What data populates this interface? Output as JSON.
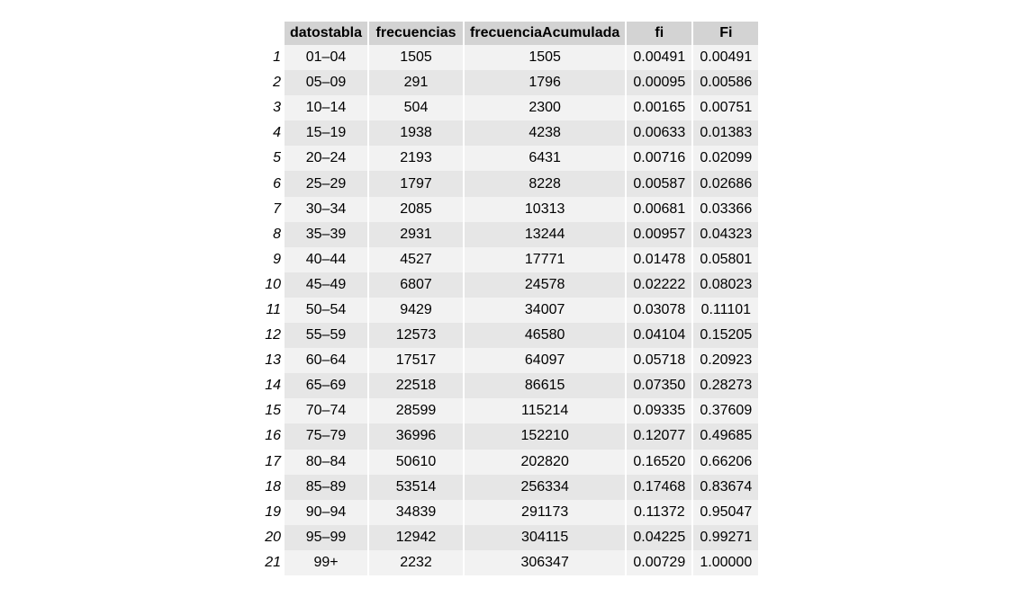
{
  "table": {
    "columns": [
      "datostabla",
      "frecuencias",
      "frecuenciaAcumulada",
      "fi",
      "Fi"
    ],
    "rows": [
      {
        "index": "1",
        "datostabla": "01–04",
        "frecuencias": "1505",
        "frecuenciaAcumulada": "1505",
        "fi": "0.00491",
        "Fi": "0.00491"
      },
      {
        "index": "2",
        "datostabla": "05–09",
        "frecuencias": "291",
        "frecuenciaAcumulada": "1796",
        "fi": "0.00095",
        "Fi": "0.00586"
      },
      {
        "index": "3",
        "datostabla": "10–14",
        "frecuencias": "504",
        "frecuenciaAcumulada": "2300",
        "fi": "0.00165",
        "Fi": "0.00751"
      },
      {
        "index": "4",
        "datostabla": "15–19",
        "frecuencias": "1938",
        "frecuenciaAcumulada": "4238",
        "fi": "0.00633",
        "Fi": "0.01383"
      },
      {
        "index": "5",
        "datostabla": "20–24",
        "frecuencias": "2193",
        "frecuenciaAcumulada": "6431",
        "fi": "0.00716",
        "Fi": "0.02099"
      },
      {
        "index": "6",
        "datostabla": "25–29",
        "frecuencias": "1797",
        "frecuenciaAcumulada": "8228",
        "fi": "0.00587",
        "Fi": "0.02686"
      },
      {
        "index": "7",
        "datostabla": "30–34",
        "frecuencias": "2085",
        "frecuenciaAcumulada": "10313",
        "fi": "0.00681",
        "Fi": "0.03366"
      },
      {
        "index": "8",
        "datostabla": "35–39",
        "frecuencias": "2931",
        "frecuenciaAcumulada": "13244",
        "fi": "0.00957",
        "Fi": "0.04323"
      },
      {
        "index": "9",
        "datostabla": "40–44",
        "frecuencias": "4527",
        "frecuenciaAcumulada": "17771",
        "fi": "0.01478",
        "Fi": "0.05801"
      },
      {
        "index": "10",
        "datostabla": "45–49",
        "frecuencias": "6807",
        "frecuenciaAcumulada": "24578",
        "fi": "0.02222",
        "Fi": "0.08023"
      },
      {
        "index": "11",
        "datostabla": "50–54",
        "frecuencias": "9429",
        "frecuenciaAcumulada": "34007",
        "fi": "0.03078",
        "Fi": "0.11101"
      },
      {
        "index": "12",
        "datostabla": "55–59",
        "frecuencias": "12573",
        "frecuenciaAcumulada": "46580",
        "fi": "0.04104",
        "Fi": "0.15205"
      },
      {
        "index": "13",
        "datostabla": "60–64",
        "frecuencias": "17517",
        "frecuenciaAcumulada": "64097",
        "fi": "0.05718",
        "Fi": "0.20923"
      },
      {
        "index": "14",
        "datostabla": "65–69",
        "frecuencias": "22518",
        "frecuenciaAcumulada": "86615",
        "fi": "0.07350",
        "Fi": "0.28273"
      },
      {
        "index": "15",
        "datostabla": "70–74",
        "frecuencias": "28599",
        "frecuenciaAcumulada": "115214",
        "fi": "0.09335",
        "Fi": "0.37609"
      },
      {
        "index": "16",
        "datostabla": "75–79",
        "frecuencias": "36996",
        "frecuenciaAcumulada": "152210",
        "fi": "0.12077",
        "Fi": "0.49685"
      },
      {
        "index": "17",
        "datostabla": "80–84",
        "frecuencias": "50610",
        "frecuenciaAcumulada": "202820",
        "fi": "0.16520",
        "Fi": "0.66206"
      },
      {
        "index": "18",
        "datostabla": "85–89",
        "frecuencias": "53514",
        "frecuenciaAcumulada": "256334",
        "fi": "0.17468",
        "Fi": "0.83674"
      },
      {
        "index": "19",
        "datostabla": "90–94",
        "frecuencias": "34839",
        "frecuenciaAcumulada": "291173",
        "fi": "0.11372",
        "Fi": "0.95047"
      },
      {
        "index": "20",
        "datostabla": "95–99",
        "frecuencias": "12942",
        "frecuenciaAcumulada": "304115",
        "fi": "0.04225",
        "Fi": "0.99271"
      },
      {
        "index": "21",
        "datostabla": "99+",
        "frecuencias": "2232",
        "frecuenciaAcumulada": "306347",
        "fi": "0.00729",
        "Fi": "1.00000"
      }
    ]
  }
}
